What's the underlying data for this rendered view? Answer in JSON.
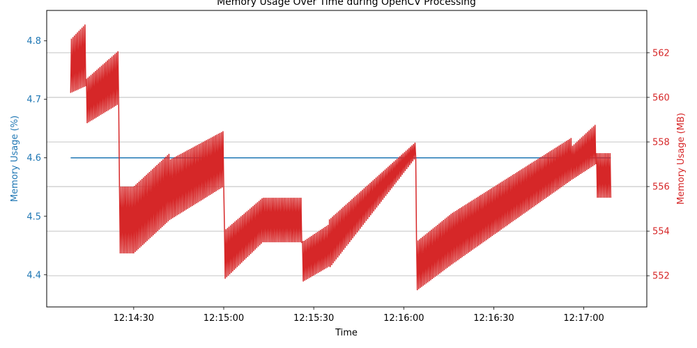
{
  "chart_data": {
    "type": "line",
    "title": "Memory Usage Over Time during OpenCV Processing",
    "xlabel": "Time",
    "ylabel_left": "Memory Usage (%)",
    "ylabel_right": "Memory Usage (MB)",
    "x_ticks": [
      "12:14:30",
      "12:15:00",
      "12:15:30",
      "12:16:00",
      "12:16:30",
      "12:17:00"
    ],
    "x_tick_seconds": [
      30,
      60,
      90,
      120,
      150,
      180
    ],
    "x_range_seconds": [
      1.0,
      201.0
    ],
    "x_origin_time": "12:14:00",
    "left_axis": {
      "ylim": [
        4.345,
        4.852
      ],
      "ticks": [
        4.4,
        4.5,
        4.6,
        4.7,
        4.8
      ],
      "color": "#1f77b4"
    },
    "right_axis": {
      "ylim": [
        550.6,
        563.9
      ],
      "ticks": [
        552,
        554,
        556,
        558,
        560,
        562
      ],
      "color": "#d62728"
    },
    "grid": true,
    "series": [
      {
        "axis": "left",
        "color": "#1f77b4",
        "x_seconds": [
          9,
          189
        ],
        "y": [
          4.6,
          4.6
        ]
      },
      {
        "axis": "right",
        "color": "#d62728",
        "segments": [
          {
            "start": 9,
            "end": 14,
            "lo0": 560.2,
            "lo1": 560.5,
            "hi0": 562.6,
            "hi1": 563.3
          },
          {
            "start": 14,
            "end": 25,
            "lo0": 558.8,
            "lo1": 559.7,
            "hi0": 560.8,
            "hi1": 562.1
          },
          {
            "start": 25,
            "end": 30,
            "lo0": 553.0,
            "lo1": 553.0,
            "hi0": 556.0,
            "hi1": 556.0
          },
          {
            "start": 30,
            "end": 42,
            "lo0": 553.0,
            "lo1": 554.5,
            "hi0": 556.0,
            "hi1": 557.5
          },
          {
            "start": 42,
            "end": 60,
            "lo0": 554.5,
            "lo1": 556.0,
            "hi0": 557.2,
            "hi1": 558.5
          },
          {
            "start": 60,
            "end": 73,
            "lo0": 551.8,
            "lo1": 553.5,
            "hi0": 554.0,
            "hi1": 555.5
          },
          {
            "start": 73,
            "end": 86,
            "lo0": 553.5,
            "lo1": 553.5,
            "hi0": 555.5,
            "hi1": 555.5
          },
          {
            "start": 86,
            "end": 95,
            "lo0": 551.7,
            "lo1": 552.4,
            "hi0": 553.5,
            "hi1": 554.3
          },
          {
            "start": 95,
            "end": 124,
            "lo0": 552.3,
            "lo1": 557.3,
            "hi0": 554.5,
            "hi1": 558.0
          },
          {
            "start": 124,
            "end": 136,
            "lo0": 551.3,
            "lo1": 552.5,
            "hi0": 553.5,
            "hi1": 554.8
          },
          {
            "start": 136,
            "end": 176,
            "lo0": 552.5,
            "lo1": 556.3,
            "hi0": 554.8,
            "hi1": 558.2
          },
          {
            "start": 176,
            "end": 184,
            "lo0": 556.3,
            "lo1": 557.0,
            "hi0": 557.8,
            "hi1": 558.8
          },
          {
            "start": 184,
            "end": 189,
            "lo0": 555.5,
            "lo1": 555.5,
            "hi0": 557.5,
            "hi1": 557.5
          }
        ]
      }
    ]
  }
}
